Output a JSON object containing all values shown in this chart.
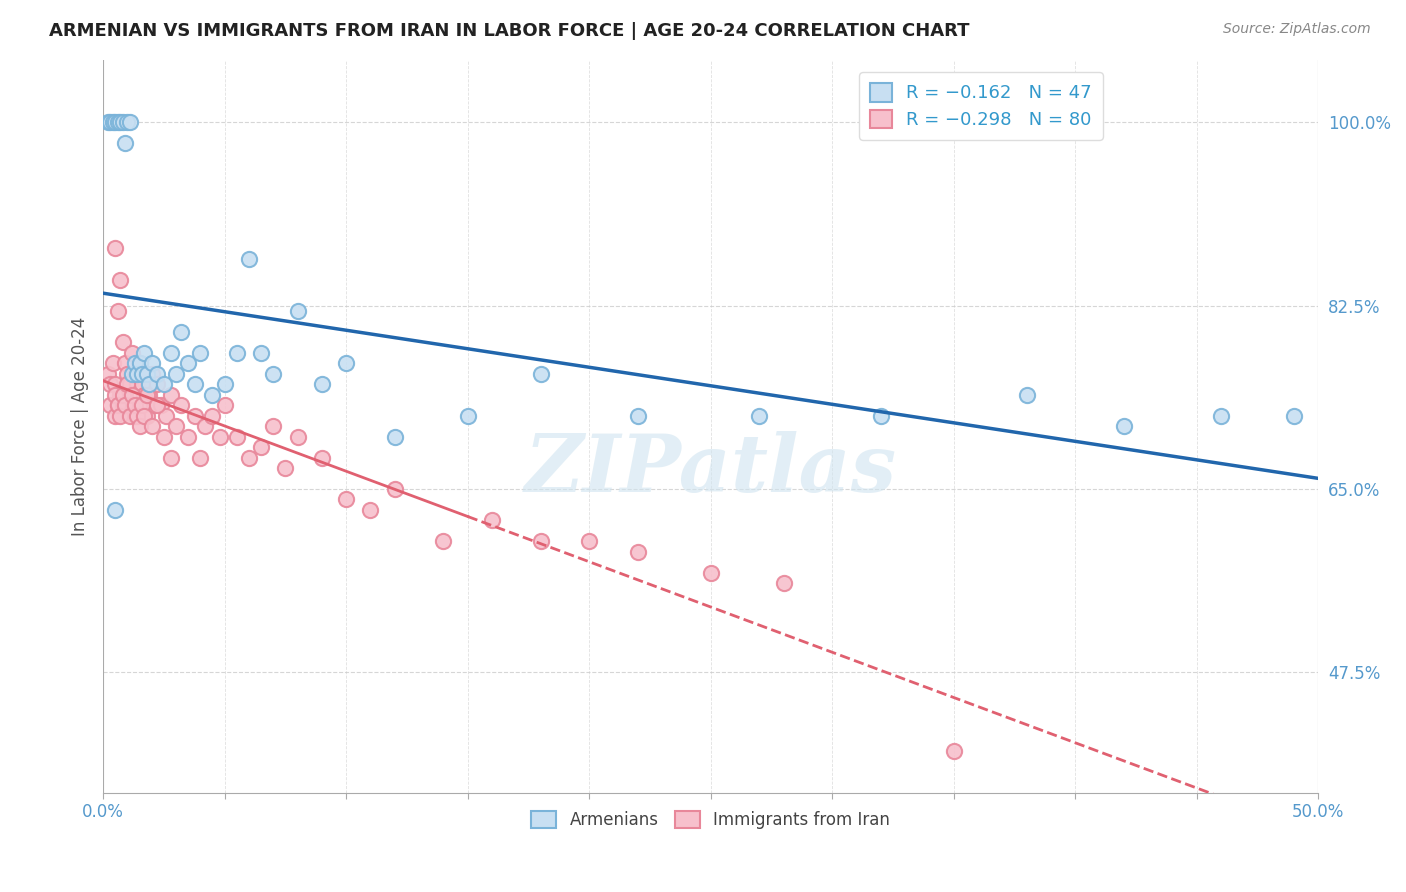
{
  "title": "ARMENIAN VS IMMIGRANTS FROM IRAN IN LABOR FORCE | AGE 20-24 CORRELATION CHART",
  "source": "Source: ZipAtlas.com",
  "ylabel": "In Labor Force | Age 20-24",
  "ytick_labels": [
    "100.0%",
    "82.5%",
    "65.0%",
    "47.5%"
  ],
  "ytick_values": [
    1.0,
    0.825,
    0.65,
    0.475
  ],
  "xmin": 0.0,
  "xmax": 0.5,
  "ymin": 0.36,
  "ymax": 1.06,
  "legend_r_armenian": "R = −0.162",
  "legend_n_armenian": "N = 47",
  "legend_r_iran": "R = −0.298",
  "legend_n_iran": "N = 80",
  "color_armenian_edge": "#7ab3d9",
  "color_iran_edge": "#e8879a",
  "color_armenian_fill": "#c8dff2",
  "color_iran_fill": "#f7c0cc",
  "color_line_armenian": "#2166ac",
  "color_line_iran": "#e06070",
  "watermark": "ZIPatlas",
  "armenian_x": [
    0.002,
    0.003,
    0.004,
    0.005,
    0.006,
    0.007,
    0.008,
    0.009,
    0.01,
    0.011,
    0.012,
    0.013,
    0.014,
    0.015,
    0.016,
    0.017,
    0.018,
    0.019,
    0.02,
    0.022,
    0.025,
    0.028,
    0.03,
    0.032,
    0.035,
    0.038,
    0.04,
    0.045,
    0.05,
    0.055,
    0.06,
    0.065,
    0.07,
    0.08,
    0.09,
    0.1,
    0.12,
    0.15,
    0.18,
    0.22,
    0.27,
    0.32,
    0.38,
    0.42,
    0.46,
    0.49,
    0.005
  ],
  "armenian_y": [
    1.0,
    1.0,
    1.0,
    1.0,
    1.0,
    1.0,
    1.0,
    0.98,
    1.0,
    1.0,
    0.76,
    0.77,
    0.76,
    0.77,
    0.76,
    0.78,
    0.76,
    0.75,
    0.77,
    0.76,
    0.75,
    0.78,
    0.76,
    0.8,
    0.77,
    0.75,
    0.78,
    0.74,
    0.75,
    0.78,
    0.87,
    0.78,
    0.76,
    0.82,
    0.75,
    0.77,
    0.7,
    0.72,
    0.76,
    0.72,
    0.72,
    0.72,
    0.74,
    0.71,
    0.72,
    0.72,
    0.63
  ],
  "iran_x": [
    0.002,
    0.003,
    0.003,
    0.004,
    0.005,
    0.005,
    0.006,
    0.006,
    0.007,
    0.007,
    0.008,
    0.008,
    0.009,
    0.009,
    0.01,
    0.01,
    0.011,
    0.012,
    0.012,
    0.013,
    0.013,
    0.014,
    0.015,
    0.015,
    0.016,
    0.017,
    0.018,
    0.019,
    0.02,
    0.021,
    0.022,
    0.024,
    0.026,
    0.028,
    0.03,
    0.032,
    0.035,
    0.038,
    0.04,
    0.042,
    0.045,
    0.048,
    0.05,
    0.055,
    0.06,
    0.065,
    0.07,
    0.075,
    0.08,
    0.09,
    0.1,
    0.11,
    0.12,
    0.14,
    0.16,
    0.18,
    0.2,
    0.22,
    0.25,
    0.28,
    0.005,
    0.005,
    0.006,
    0.007,
    0.008,
    0.009,
    0.01,
    0.011,
    0.012,
    0.013,
    0.014,
    0.015,
    0.016,
    0.017,
    0.018,
    0.02,
    0.022,
    0.025,
    0.028,
    0.35
  ],
  "iran_y": [
    0.76,
    0.75,
    0.73,
    0.77,
    0.88,
    0.72,
    0.82,
    0.73,
    0.85,
    0.74,
    0.79,
    0.73,
    0.77,
    0.74,
    0.76,
    0.73,
    0.75,
    0.78,
    0.73,
    0.76,
    0.72,
    0.75,
    0.77,
    0.73,
    0.75,
    0.74,
    0.72,
    0.74,
    0.76,
    0.73,
    0.75,
    0.73,
    0.72,
    0.74,
    0.71,
    0.73,
    0.7,
    0.72,
    0.68,
    0.71,
    0.72,
    0.7,
    0.73,
    0.7,
    0.68,
    0.69,
    0.71,
    0.67,
    0.7,
    0.68,
    0.64,
    0.63,
    0.65,
    0.6,
    0.62,
    0.6,
    0.6,
    0.59,
    0.57,
    0.56,
    0.75,
    0.74,
    0.73,
    0.72,
    0.74,
    0.73,
    0.75,
    0.72,
    0.74,
    0.73,
    0.72,
    0.71,
    0.73,
    0.72,
    0.74,
    0.71,
    0.73,
    0.7,
    0.68,
    0.4
  ]
}
